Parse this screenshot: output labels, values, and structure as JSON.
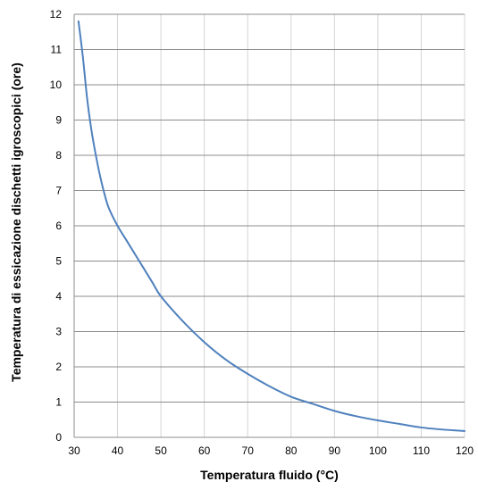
{
  "chart_data": {
    "type": "line",
    "title": "",
    "xlabel": "Temperatura fluido (°C)",
    "ylabel": "Temperatura di essicazione dischetti igroscopici (ore)",
    "xlim": [
      30,
      120
    ],
    "ylim": [
      0,
      12
    ],
    "x_ticks": [
      30,
      40,
      50,
      60,
      70,
      80,
      90,
      100,
      110,
      120
    ],
    "y_ticks": [
      0,
      1,
      2,
      3,
      4,
      5,
      6,
      7,
      8,
      9,
      10,
      11,
      12
    ],
    "grid": true,
    "series": [
      {
        "color": "#4f81bd",
        "x": [
          31,
          32,
          33,
          34,
          35,
          36,
          37,
          38,
          40,
          42,
          45,
          48,
          50,
          55,
          60,
          65,
          70,
          75,
          80,
          85,
          90,
          95,
          100,
          105,
          110,
          115,
          120
        ],
        "y": [
          11.8,
          10.8,
          9.6,
          8.7,
          8.0,
          7.4,
          6.9,
          6.5,
          6.0,
          5.6,
          5.0,
          4.4,
          4.0,
          3.3,
          2.7,
          2.2,
          1.8,
          1.45,
          1.15,
          0.95,
          0.75,
          0.6,
          0.48,
          0.38,
          0.28,
          0.22,
          0.18
        ]
      }
    ]
  }
}
